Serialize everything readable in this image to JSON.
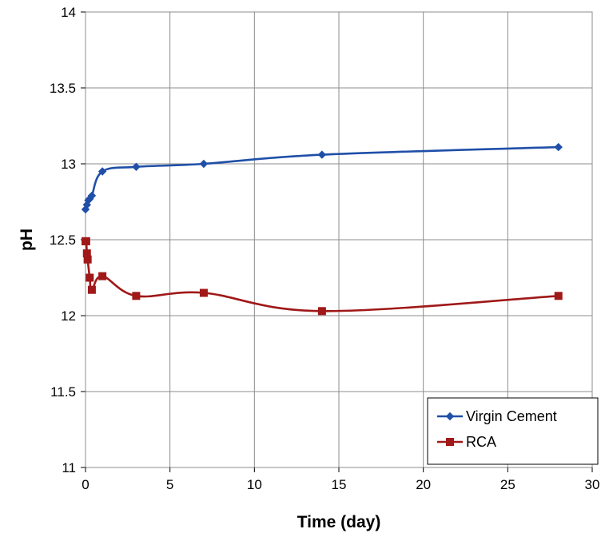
{
  "chart_data": {
    "type": "line",
    "title": "",
    "xlabel": "Time (day)",
    "ylabel": "pH",
    "xlim": [
      0,
      30
    ],
    "ylim": [
      11,
      14
    ],
    "x_ticks": [
      "0",
      "5",
      "10",
      "15",
      "20",
      "25",
      "30"
    ],
    "y_ticks": [
      "11",
      "11.5",
      "12",
      "12.5",
      "13",
      "13.5",
      "14"
    ],
    "grid": true,
    "legend_position": "bottom-right",
    "smooth": true,
    "series": [
      {
        "name": "Virgin Cement",
        "color": "#1f4fa8",
        "marker": "diamond",
        "x": [
          0,
          0.083,
          0.167,
          0.25,
          0.375,
          1,
          3,
          7,
          14,
          28
        ],
        "y": [
          12.7,
          12.73,
          12.76,
          12.77,
          12.79,
          12.95,
          12.98,
          13.0,
          13.06,
          13.11
        ]
      },
      {
        "name": "RCA",
        "color": "#a01818",
        "marker": "square",
        "x": [
          0,
          0.042,
          0.083,
          0.125,
          0.25,
          0.375,
          1,
          3,
          7,
          14,
          28
        ],
        "y": [
          12.49,
          12.49,
          12.41,
          12.37,
          12.25,
          12.17,
          12.26,
          12.13,
          12.15,
          12.03,
          12.13
        ]
      }
    ]
  }
}
